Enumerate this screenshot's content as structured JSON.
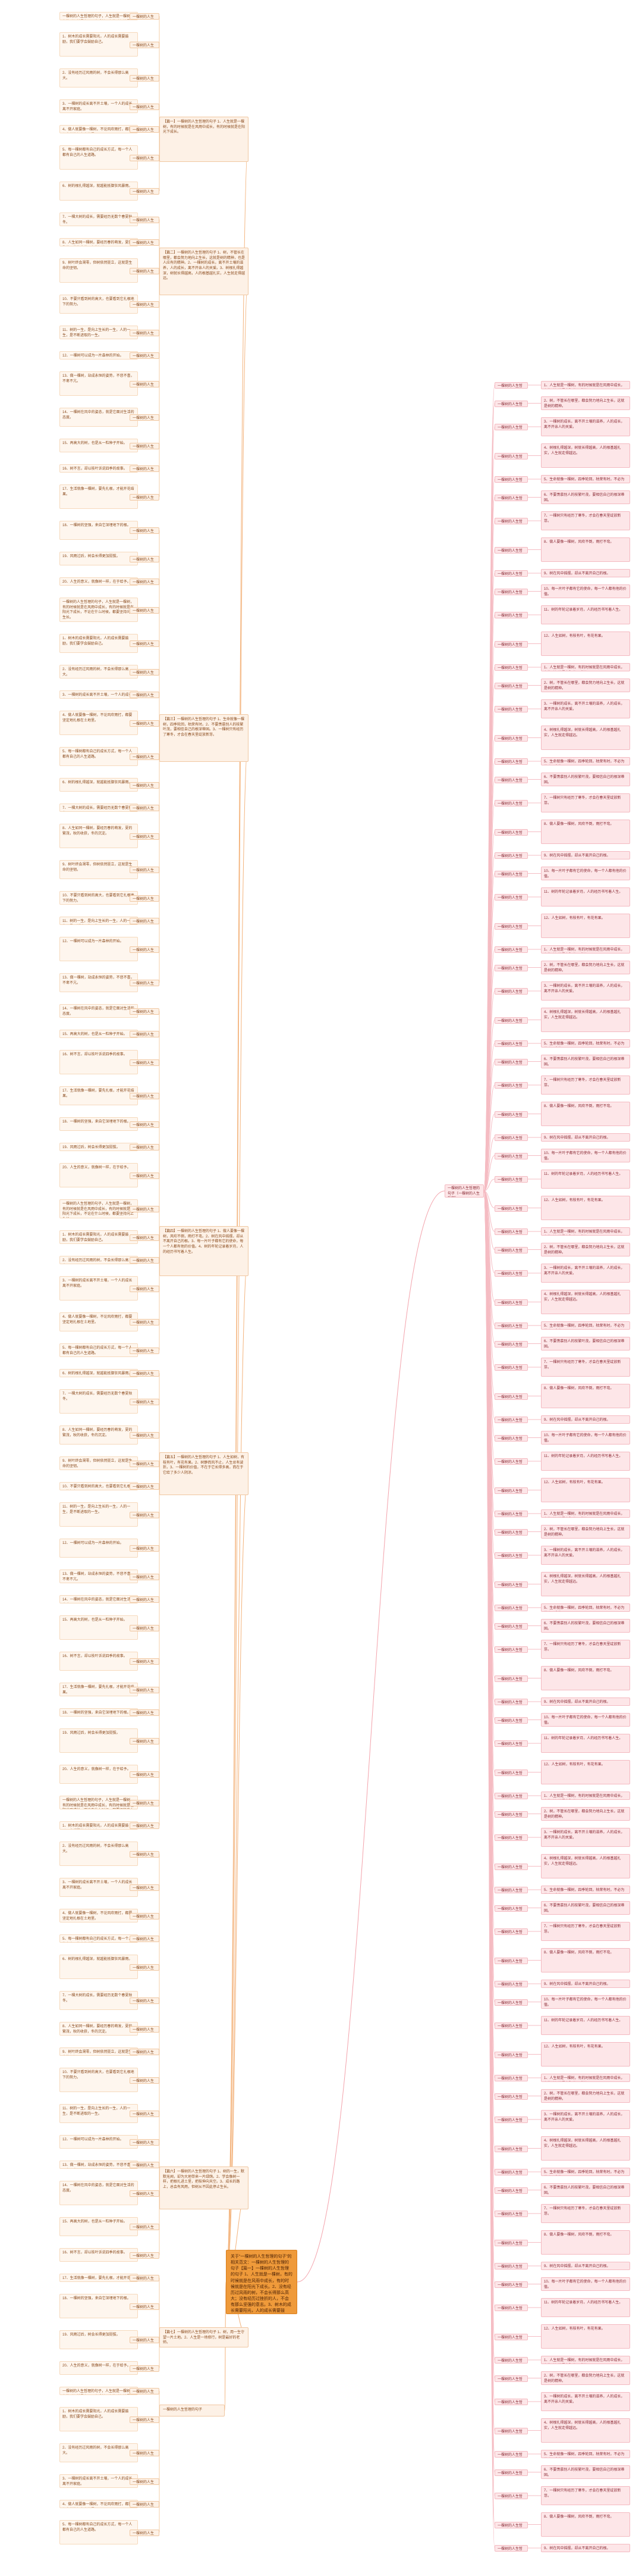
{
  "root": {
    "text": "关于“一棵树的人生哲理的句子”的相关范文：一棵树的人生哲理的句子【篇一】一棵树的人生哲理的句子 1、人生就是一棵树，有的时候就是在风雨中成长，有的时候就是在阳光下成长。2、没有经历过风雨的树，不会长得那么高大；没有经历过挫折的人，不会有那么坚强的意志。3、树木的成长需要阳光，人的成长需要鼓励。"
  },
  "branches": [
    {
      "text": "【篇一】一棵树的人生哲理的句子 1、人生就是一棵树，有的时候就是在风雨中成长，有的时候就是在阳光下成长。"
    },
    {
      "text": "【篇二】一棵树的人生哲理的句子 1、树，不管长在哪里，都会努力地向上生长，这就是树的精神，也是人应有的精神。2、一棵树的成长，离不开土壤的滋养，人的成长，离不开亲人的关爱。3、树根扎得越深，树就长得越高，人的根基越扎实，人生就走得越远。"
    },
    {
      "text": "【篇三】一棵树的人生哲理的句子 1、生命就像一棵树，四季轮回，枯荣有时。2、不要羡慕别人的枝繁叶茂，要相信自己的根深蒂固。3、一棵树只有经历了寒冬，才会在春天里绽放新芽。"
    },
    {
      "text": "【篇四】一棵树的人生哲理的句子 1、做人要像一棵树，风吹不倒，雨打不弯。2、树在风中摇摆，却从不离开自己的根。3、每一片叶子都有它的使命，每一个人都有他的价值。4、树的年轮记录着岁月，人的经历书写着人生。"
    },
    {
      "text": "【篇五】一棵树的人生哲理的句子 1、人生如树，有枝有叶，有花有果。2、树静而风不止，人生总有波折。3、一棵树的价值，不在于它长得多高，而在于它给了多少人阴凉。"
    },
    {
      "text": "【篇六】一棵树的人生哲理的句子 1、树的一生，默默无闻，却为大地带来一片绿荫。2、学会像树一样，把根扎进土里，把枝伸向天空。3、成长的路上，总会有风雨，但树从不因此停止生长。"
    },
    {
      "text": "【篇七】一棵树的人生哲理的句子 1、树，用一生守望一片土地。2、人生是一场修行，树是最好的老师。"
    },
    {
      "text": "一棵树的人生哲理的句子"
    }
  ],
  "right_hub": {
    "text": "一棵树的人生哲理的句子（一棵树的人生哲理）"
  },
  "leaf_left_text": [
    "一棵树的人生哲理的句子，人生就是一棵树，有的时候就是在风雨中成长，有的时候就是在阳光下成长，不论在什么时候，都要坚持向上生长。",
    "1、树木的成长需要阳光，人的成长需要鼓励，我们要学会鼓励自己。",
    "2、没有经历过风雨的树，不会长得那么高大。",
    "3、一棵树的成长离不开土壤，一个人的成长离不开家庭。",
    "4、做人就要像一棵树，不论风吹雨打，都要坚定地扎根在土地里。",
    "5、每一棵树都有自己的成长方式，每一个人都有自己的人生道路。",
    "6、树的根扎得越深，就越能抵御狂风暴雨。",
    "7、一棵大树的成长，需要经历无数个春夏秋冬。",
    "8、人生如同一棵树，要经历春的萌发，夏的繁茂，秋的收获，冬的沉淀。",
    "9、树叶终会凋零，但树依然挺立，这就是生命的坚韧。",
    "10、不要只看到树的高大，也要看到它扎根地下的努力。",
    "11、树的一生，是向上生长的一生，人的一生，是不断进取的一生。",
    "12、一棵树可以成为一片森林的开始。",
    "13、做一棵树，站成永恒的姿势，不悲不喜，不卑不亢。",
    "14、一棵树在风中的姿态，就是它面对生活的态度。",
    "15、再高大的树，也是从一粒种子开始。",
    "16、树不言，却以枝叶诉说四季的故事。",
    "17、生活就像一棵树，要先扎根，才能开花结果。",
    "18、一棵树的坚强，来自它深埋地下的根。",
    "19、风雨过后，树会长得更加挺拔。",
    "20、人生的意义，就像树一样，在于给予。"
  ],
  "leaf_right_text": [
    "1、人生就是一棵树，有的时候就是在风雨中成长，有的时候就是在阳光下成长。",
    "2、树，不管长在哪里，都会努力地向上生长，这就是树的精神。",
    "3、一棵树的成长，离不开土壤的滋养，人的成长，离不开亲人的关爱。",
    "4、树根扎得越深，树就长得越高，人的根基越扎实，人生就走得越远。",
    "5、生命就像一棵树，四季轮回，枯荣有时，不必为落叶而悲伤。",
    "6、不要羡慕别人的枝繁叶茂，要相信自己的根深蒂固。",
    "7、一棵树只有经历了寒冬，才会在春天里绽放新芽。",
    "8、做人要像一棵树，风吹不倒，雨打不弯。",
    "9、树在风中摇摆，却从不离开自己的根。",
    "10、每一片叶子都有它的使命，每一个人都有他的价值。",
    "11、树的年轮记录着岁月，人的经历书写着人生。",
    "12、人生如树，有枝有叶，有花有果。"
  ],
  "tag_text": "一棵树的人生哲理的句子"
}
